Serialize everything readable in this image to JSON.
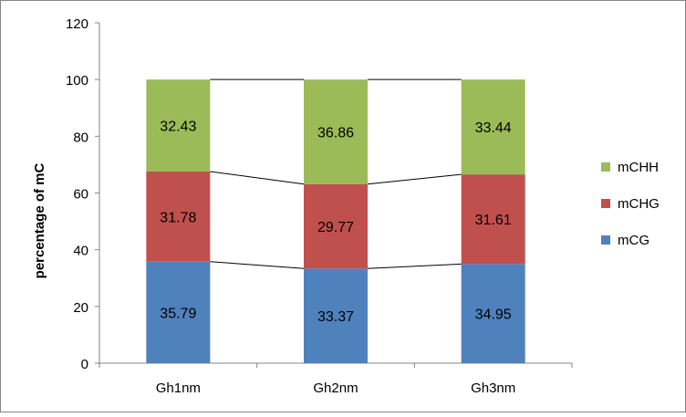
{
  "chart_data": {
    "type": "bar",
    "stacked": true,
    "title": "",
    "xlabel": "",
    "ylabel": "percentage of mC",
    "ylim": [
      0,
      120
    ],
    "yticks": [
      0,
      20,
      40,
      60,
      80,
      100,
      120
    ],
    "categories": [
      "Gh1nm",
      "Gh2nm",
      "Gh3nm"
    ],
    "series": [
      {
        "name": "mCG",
        "color": "#4F81BD",
        "values": [
          35.79,
          33.37,
          34.95
        ]
      },
      {
        "name": "mCHG",
        "color": "#C0504D",
        "values": [
          31.78,
          29.77,
          31.61
        ]
      },
      {
        "name": "mCHH",
        "color": "#9BBB59",
        "values": [
          32.43,
          36.86,
          33.44
        ]
      }
    ],
    "legend_position": "right",
    "grid": false,
    "series_lines": true
  }
}
